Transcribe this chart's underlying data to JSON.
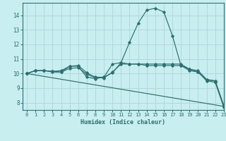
{
  "background_color": "#c8eef0",
  "grid_color": "#b0d8da",
  "line_color": "#2d7070",
  "xlabel": "Humidex (Indice chaleur)",
  "xlim": [
    -0.5,
    23
  ],
  "ylim": [
    7.5,
    14.85
  ],
  "xticks": [
    0,
    1,
    2,
    3,
    4,
    5,
    6,
    7,
    8,
    9,
    10,
    11,
    12,
    13,
    14,
    15,
    16,
    17,
    18,
    19,
    20,
    21,
    22,
    23
  ],
  "yticks": [
    8,
    9,
    10,
    11,
    12,
    13,
    14
  ],
  "series": [
    {
      "x": [
        0,
        1,
        2,
        3,
        4,
        5,
        6,
        7,
        8,
        9,
        10,
        11,
        12,
        13,
        14,
        15,
        16,
        17,
        18,
        19,
        20,
        21,
        22,
        23
      ],
      "y": [
        10.0,
        10.2,
        10.2,
        10.15,
        10.1,
        10.5,
        10.5,
        9.75,
        9.65,
        9.75,
        10.05,
        10.75,
        12.15,
        13.45,
        14.35,
        14.48,
        14.22,
        12.6,
        10.55,
        10.2,
        10.1,
        9.55,
        9.5,
        7.8
      ]
    },
    {
      "x": [
        0,
        1,
        2,
        3,
        4,
        5,
        6,
        7,
        8,
        9,
        10,
        11,
        12,
        13,
        14,
        15,
        16,
        17,
        18,
        19,
        20,
        21,
        22,
        23
      ],
      "y": [
        10.0,
        10.2,
        10.2,
        10.15,
        10.2,
        10.5,
        10.55,
        10.05,
        9.75,
        9.75,
        10.65,
        10.75,
        10.65,
        10.65,
        10.55,
        10.55,
        10.55,
        10.55,
        10.55,
        10.3,
        10.2,
        9.6,
        9.5,
        7.8
      ]
    },
    {
      "x": [
        0,
        1,
        2,
        3,
        4,
        5,
        6,
        7,
        8,
        9,
        10,
        11,
        12,
        13,
        14,
        15,
        16,
        17,
        18,
        19,
        20,
        21,
        22,
        23
      ],
      "y": [
        10.0,
        10.2,
        10.2,
        10.1,
        10.1,
        10.35,
        10.4,
        9.95,
        9.7,
        9.7,
        10.1,
        10.65,
        10.65,
        10.65,
        10.65,
        10.65,
        10.65,
        10.65,
        10.65,
        10.3,
        10.1,
        9.5,
        9.4,
        7.7
      ]
    },
    {
      "x": [
        0,
        23
      ],
      "y": [
        10.0,
        7.75
      ]
    }
  ]
}
